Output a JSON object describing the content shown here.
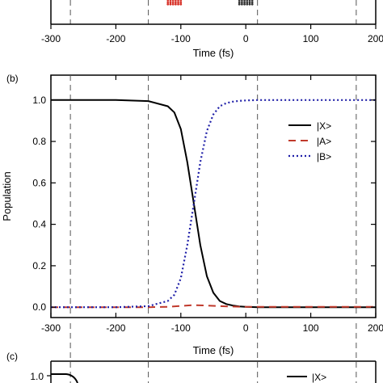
{
  "chart_data": [
    {
      "panel": "a",
      "type": "scatter",
      "xlabel": "Time (fs)",
      "xlim": [
        -300,
        200
      ],
      "xticks": [
        -300,
        -200,
        -100,
        0,
        100,
        200
      ],
      "pulses": [
        {
          "center": -110,
          "color": "#d73027"
        },
        {
          "center": 0,
          "color": "#333333"
        }
      ]
    },
    {
      "panel": "b",
      "panel_label": "(b)",
      "type": "line",
      "xlabel": "Time (fs)",
      "ylabel": "Population",
      "xlim": [
        -300,
        200
      ],
      "ylim": [
        -0.05,
        1.12
      ],
      "xticks": [
        -300,
        -200,
        -100,
        0,
        100,
        200
      ],
      "yticks": [
        0.0,
        0.2,
        0.4,
        0.6,
        0.8,
        1.0
      ],
      "legend_position": "right",
      "series": [
        {
          "name": "|X>",
          "color": "#000000",
          "style": "solid",
          "x": [
            -300,
            -200,
            -150,
            -120,
            -110,
            -100,
            -90,
            -80,
            -75,
            -70,
            -60,
            -50,
            -40,
            -30,
            -20,
            -10,
            0,
            20,
            50,
            100,
            150,
            200
          ],
          "y": [
            1.0,
            1.0,
            0.995,
            0.97,
            0.94,
            0.86,
            0.7,
            0.5,
            0.4,
            0.3,
            0.15,
            0.07,
            0.03,
            0.015,
            0.008,
            0.004,
            0.002,
            0.0,
            0.0,
            0.0,
            0.0,
            0.0
          ]
        },
        {
          "name": "|A>",
          "color": "#c0392b",
          "style": "dashed",
          "x": [
            -300,
            -200,
            -150,
            -120,
            -100,
            -80,
            -60,
            -40,
            -20,
            0,
            50,
            100,
            150,
            200
          ],
          "y": [
            0.0,
            0.0,
            0.0,
            0.002,
            0.006,
            0.01,
            0.008,
            0.005,
            0.003,
            0.002,
            0.002,
            0.002,
            0.002,
            0.002
          ]
        },
        {
          "name": "|B>",
          "color": "#1f1fa8",
          "style": "dotted",
          "x": [
            -300,
            -200,
            -150,
            -120,
            -110,
            -100,
            -90,
            -80,
            -75,
            -70,
            -60,
            -50,
            -40,
            -30,
            -20,
            -10,
            0,
            20,
            50,
            100,
            150,
            200
          ],
          "y": [
            0.0,
            0.0,
            0.005,
            0.03,
            0.06,
            0.14,
            0.3,
            0.5,
            0.6,
            0.7,
            0.85,
            0.93,
            0.97,
            0.985,
            0.992,
            0.996,
            0.998,
            1.0,
            1.0,
            1.0,
            1.0,
            1.0
          ]
        }
      ],
      "vlines": [
        -270,
        -150,
        18,
        170
      ]
    },
    {
      "panel": "c",
      "panel_label": "(c)",
      "type": "line",
      "xlim": [
        -300,
        200
      ],
      "ytick_visible": "1.0",
      "legend_visible": "|X>"
    }
  ]
}
